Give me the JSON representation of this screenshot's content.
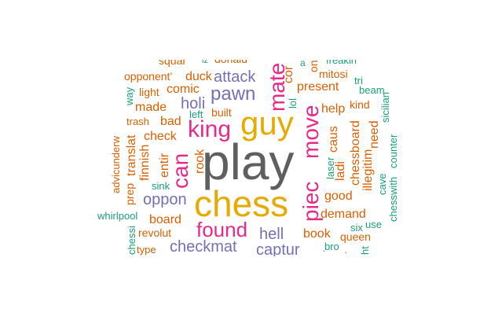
{
  "palette": {
    "gray": "#5f5f5f",
    "gold": "#e6ab02",
    "magenta": "#e7298a",
    "purple": "#7570b3",
    "orange": "#d95f02",
    "teal": "#1b9e77"
  },
  "words": [
    {
      "text": "play",
      "color": "#5f5f5f"
    },
    {
      "text": "chess",
      "color": "#e6ab02"
    },
    {
      "text": "guy",
      "color": "#e6ab02"
    },
    {
      "text": "king",
      "color": "#e7298a"
    },
    {
      "text": "can",
      "color": "#e7298a"
    },
    {
      "text": "found",
      "color": "#e7298a"
    },
    {
      "text": "piec",
      "color": "#e7298a"
    },
    {
      "text": "move",
      "color": "#e7298a"
    },
    {
      "text": "mate",
      "color": "#e7298a"
    },
    {
      "text": "pawn",
      "color": "#7570b3"
    },
    {
      "text": "attack",
      "color": "#7570b3"
    },
    {
      "text": "holi",
      "color": "#7570b3"
    },
    {
      "text": "oppon",
      "color": "#7570b3"
    },
    {
      "text": "hell",
      "color": "#7570b3"
    },
    {
      "text": "checkmat",
      "color": "#7570b3"
    },
    {
      "text": "captur",
      "color": "#7570b3"
    },
    {
      "text": "squar",
      "color": "#d95f02"
    },
    {
      "text": "donald",
      "color": "#d95f02"
    },
    {
      "text": "opponent’",
      "color": "#d95f02"
    },
    {
      "text": "duck",
      "color": "#d95f02"
    },
    {
      "text": "light",
      "color": "#d95f02"
    },
    {
      "text": "comic",
      "color": "#d95f02"
    },
    {
      "text": "made",
      "color": "#d95f02"
    },
    {
      "text": "built",
      "color": "#d95f02"
    },
    {
      "text": "bad",
      "color": "#d95f02"
    },
    {
      "text": "check",
      "color": "#d95f02"
    },
    {
      "text": "trash",
      "color": "#d95f02"
    },
    {
      "text": "board",
      "color": "#d95f02"
    },
    {
      "text": "revolut",
      "color": "#d95f02"
    },
    {
      "text": "type",
      "color": "#d95f02"
    },
    {
      "text": "present",
      "color": "#d95f02"
    },
    {
      "text": "mitosi",
      "color": "#d95f02"
    },
    {
      "text": "help",
      "color": "#d95f02"
    },
    {
      "text": "kind",
      "color": "#d95f02"
    },
    {
      "text": "good",
      "color": "#d95f02"
    },
    {
      "text": "demand",
      "color": "#d95f02"
    },
    {
      "text": "book",
      "color": "#d95f02"
    },
    {
      "text": "queen",
      "color": "#d95f02"
    },
    {
      "text": "cor",
      "color": "#d95f02"
    },
    {
      "text": "caus",
      "color": "#d95f02"
    },
    {
      "text": "ladi",
      "color": "#d95f02"
    },
    {
      "text": "chessboard",
      "color": "#d95f02"
    },
    {
      "text": "illegitim",
      "color": "#d95f02"
    },
    {
      "text": "need",
      "color": "#d95f02"
    },
    {
      "text": "rook",
      "color": "#d95f02"
    },
    {
      "text": "entir",
      "color": "#d95f02"
    },
    {
      "text": "finnish",
      "color": "#d95f02"
    },
    {
      "text": "translat",
      "color": "#d95f02"
    },
    {
      "text": "prep",
      "color": "#d95f02"
    },
    {
      "text": "advicunderw",
      "color": "#d95f02"
    },
    {
      "text": "one",
      "color": "#d95f02"
    },
    {
      "text": "freakin",
      "color": "#1b9e77"
    },
    {
      "text": "tri",
      "color": "#1b9e77"
    },
    {
      "text": "beam",
      "color": "#1b9e77"
    },
    {
      "text": "left",
      "color": "#1b9e77"
    },
    {
      "text": "sink",
      "color": "#1b9e77"
    },
    {
      "text": "whirlpool",
      "color": "#1b9e77"
    },
    {
      "text": "six",
      "color": "#1b9e77"
    },
    {
      "text": "use",
      "color": "#1b9e77"
    },
    {
      "text": "bro",
      "color": "#1b9e77"
    },
    {
      "text": "way",
      "color": "#1b9e77"
    },
    {
      "text": "lol",
      "color": "#1b9e77"
    },
    {
      "text": "laser",
      "color": "#1b9e77"
    },
    {
      "text": "cave",
      "color": "#1b9e77"
    },
    {
      "text": "chesswith",
      "color": "#1b9e77"
    },
    {
      "text": "counter",
      "color": "#1b9e77"
    },
    {
      "text": "sicilian",
      "color": "#1b9e77"
    },
    {
      "text": "chessi",
      "color": "#1b9e77"
    },
    {
      "text": "ht",
      "color": "#1b9e77"
    },
    {
      "text": "lz",
      "color": "#1b9e77"
    },
    {
      "text": "a",
      "color": "#1b9e77"
    },
    {
      "text": "·",
      "color": "#7570b3"
    },
    {
      "text": "·",
      "color": "#d95f02"
    }
  ]
}
